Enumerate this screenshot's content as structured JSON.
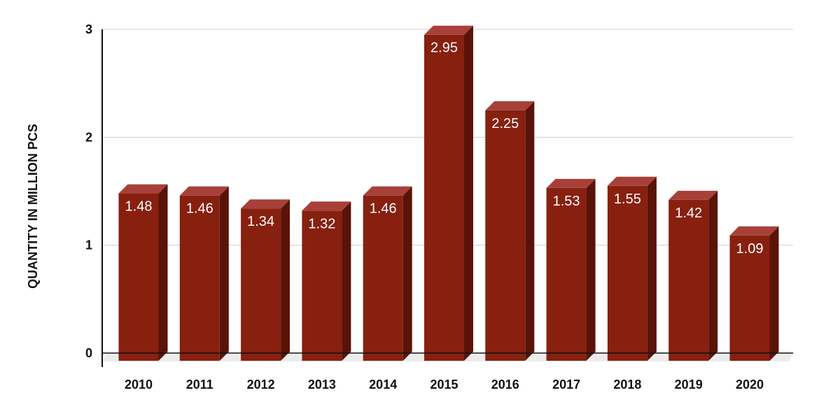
{
  "chart_data": {
    "type": "bar",
    "title": "",
    "xlabel": "",
    "ylabel": "QUANTITY IN MILLION PCS",
    "ylim": [
      0,
      3
    ],
    "yticks": [
      0,
      1,
      2,
      3
    ],
    "grid": true,
    "categories": [
      "2010",
      "2011",
      "2012",
      "2013",
      "2014",
      "2015",
      "2016",
      "2017",
      "2018",
      "2019",
      "2020"
    ],
    "values": [
      1.48,
      1.46,
      1.34,
      1.32,
      1.46,
      2.95,
      2.25,
      1.53,
      1.55,
      1.42,
      1.09
    ],
    "data_labels": [
      "1.48",
      "1.46",
      "1.34",
      "1.32",
      "1.46",
      "2.95",
      "2.25",
      "1.53",
      "1.55",
      "1.42",
      "1.09"
    ],
    "colors": {
      "bar_front": "#87200f",
      "bar_top": "#a8403a",
      "bar_side": "#5a1308",
      "grid": "#cfcfcf",
      "axis": "#111111"
    }
  }
}
